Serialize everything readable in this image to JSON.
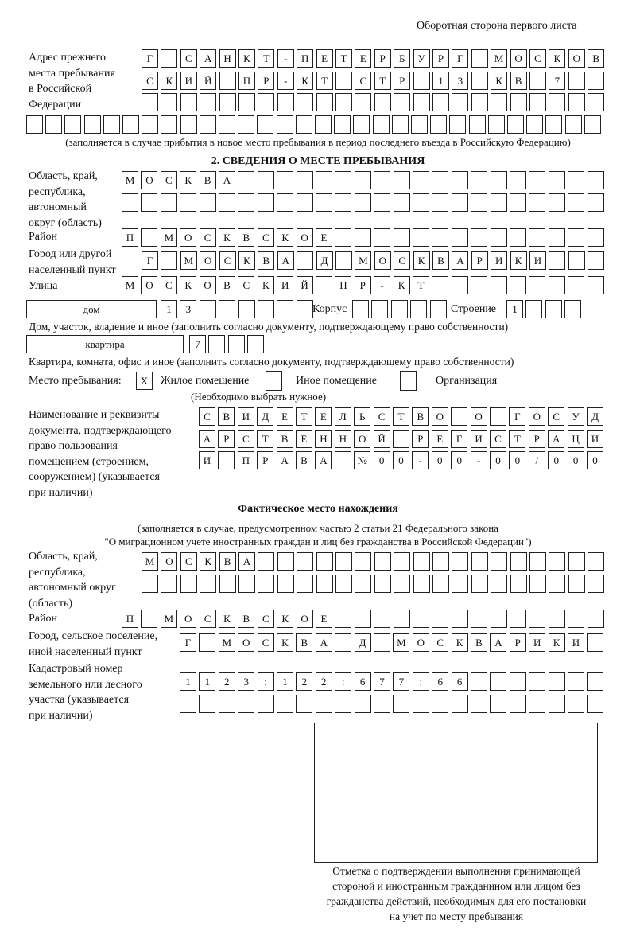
{
  "header": {
    "side_title": "Оборотная сторона первого листа"
  },
  "previous_address": {
    "label": "Адрес прежнего\nместа пребывания\nв Российской\nФедерации",
    "rows": [
      "Г САНКТ-ПЕТЕРБУРГ МОСКОВ",
      "СКИЙ ПР-КТ СТР 13 КВ 7  ",
      "                        ",
      "                              "
    ],
    "note": "(заполняется в случае прибытия в новое место пребывания в период последнего въезда в Российскую Федерацию)"
  },
  "stay": {
    "heading": "2. СВЕДЕНИЯ О МЕСТЕ ПРЕБЫВАНИЯ",
    "region_label": "Область, край,\nреспублика,\nавтономный\nокруг (область)",
    "region_rows": [
      "МОСКВА                   ",
      "                         "
    ],
    "district_label": "Район",
    "district_row": "П МОСКВСКОЕ              ",
    "city_label": "Город или другой\nнаселенный пункт",
    "city_row": "Г МОСКВА Д МОСКВАРИКИ   ",
    "street_label": "Улица",
    "street_row": "МОСКОВСКИЙ ПР-КТ         ",
    "house_type": "дом",
    "house_row": "13      ",
    "korpus_label": "Корпус",
    "korpus_row": "     ",
    "building_label": "Строение",
    "building_row": "1   ",
    "house_note": "Дом, участок, владение и иное (заполнить согласно документу, подтверждающему право собственности)",
    "flat_type": "квартира",
    "flat_row": "7   ",
    "flat_note": "Квартира, комната, офис и иное (заполнить согласно документу, подтверждающему право собственности)",
    "place_label": "Место пребывания:",
    "options": [
      {
        "label": "Жилое помещение",
        "mark": "X"
      },
      {
        "label": "Иное помещение",
        "mark": ""
      },
      {
        "label": "Организация",
        "mark": ""
      }
    ],
    "choose_note": "(Необходимо выбрать нужное)",
    "doc_label": "Наименование и реквизиты\nдокумента, подтверждающего\nправо пользования\nпомещением (строением,\nсооружением) (указывается\nпри наличии)",
    "doc_rows": [
      "СВИДЕТЕЛЬСТВО О ГОСУД",
      "АРСТВЕННОЙ РЕГИСТРАЦИ",
      "И ПРАВА №00-00-00/000"
    ]
  },
  "actual": {
    "heading": "Фактическое место нахождения",
    "note1": "(заполняется в случае, предусмотренном частью 2 статьи 21 Федерального закона",
    "note2": "\"О миграционном учете иностранных граждан и лиц без гражданства в Российской Федерации\")",
    "region_label": "Область, край,\nреспублика,\nавтономный округ\n(область)",
    "region_rows": [
      "МОСКВА                  ",
      "                        "
    ],
    "district_label": "Район",
    "district_row": "П МОСКВСКОЕ              ",
    "city_label": "Город, сельское поселение,\nиной населенный пункт",
    "city_row": "Г МОСКВА Д МОСКВАРИКИ ",
    "cadastre_label": "Кадастровый номер\nземельного или лесного\nучастка (указывается\nпри наличии)",
    "cadastre_rows": [
      "1123:122:677:66       ",
      "                      "
    ]
  },
  "stamp": {
    "caption": "Отметка о подтверждении выполнения принимающей\nстороной и иностранным гражданином или лицом без\nгражданства действий, необходимых для его постановки\nна учет по месту пребывания"
  }
}
